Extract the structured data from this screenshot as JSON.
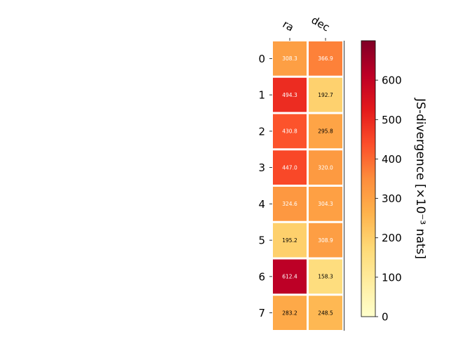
{
  "chart_data": {
    "type": "heatmap",
    "columns": [
      "ra",
      "dec"
    ],
    "rows": [
      "0",
      "1",
      "2",
      "3",
      "4",
      "5",
      "6",
      "7"
    ],
    "values": [
      [
        308.3,
        366.9
      ],
      [
        494.3,
        192.7
      ],
      [
        430.8,
        295.8
      ],
      [
        447.0,
        320.0
      ],
      [
        324.6,
        304.3
      ],
      [
        195.2,
        308.9
      ],
      [
        612.4,
        158.3
      ],
      [
        283.2,
        248.5
      ]
    ],
    "value_labels": [
      [
        "308.3",
        "366.9"
      ],
      [
        "494.3",
        "192.7"
      ],
      [
        "430.8",
        "295.8"
      ],
      [
        "447.0",
        "320.0"
      ],
      [
        "324.6",
        "304.3"
      ],
      [
        "195.2",
        "308.9"
      ],
      [
        "612.4",
        "158.3"
      ],
      [
        "283.2",
        "248.5"
      ]
    ],
    "colorbar": {
      "label": "JS-divergence [×10⁻³ nats]",
      "ticks": [
        0,
        100,
        200,
        300,
        400,
        500,
        600
      ],
      "range": [
        0,
        700
      ],
      "colormap": "YlOrRd",
      "stops": [
        "#ffffcc",
        "#ffeda0",
        "#fed976",
        "#feb24c",
        "#fd8d3c",
        "#fc4e2a",
        "#e31a1c",
        "#bd0026",
        "#800026"
      ]
    },
    "text_colors": {
      "light": "#ffffff",
      "dark": "#000000"
    }
  }
}
